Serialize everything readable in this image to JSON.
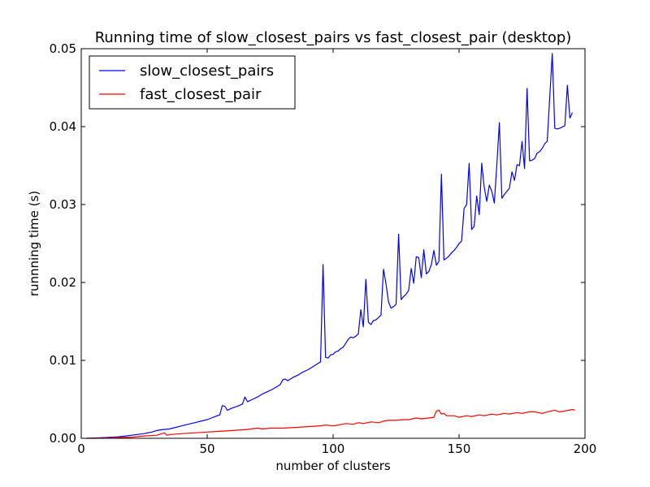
{
  "chart_data": {
    "type": "line",
    "title": "Running time of slow_closest_pairs vs fast_closest_pair (desktop)",
    "xlabel": "number of clusters",
    "ylabel": "runnning time (s)",
    "xlim": [
      0,
      200
    ],
    "ylim": [
      0,
      0.05
    ],
    "xticks": [
      0,
      50,
      100,
      150,
      200
    ],
    "xtick_labels": [
      "0",
      "50",
      "100",
      "150",
      "200"
    ],
    "yticks": [
      0,
      0.01,
      0.02,
      0.03,
      0.04,
      0.05
    ],
    "ytick_labels": [
      "0.00",
      "0.01",
      "0.02",
      "0.03",
      "0.04",
      "0.05"
    ],
    "grid": false,
    "legend_position": "top-left",
    "series": [
      {
        "name": "slow_closest_pairs",
        "color": "#0000ff",
        "points": [
          [
            2,
            0.0
          ],
          [
            5,
            3e-05
          ],
          [
            10,
            0.0001
          ],
          [
            15,
            0.0002
          ],
          [
            20,
            0.0004
          ],
          [
            25,
            0.0006
          ],
          [
            28,
            0.0008
          ],
          [
            30,
            0.001
          ],
          [
            32,
            0.0011
          ],
          [
            35,
            0.0012
          ],
          [
            40,
            0.0016
          ],
          [
            45,
            0.002
          ],
          [
            50,
            0.0024
          ],
          [
            54,
            0.0029
          ],
          [
            55,
            0.003
          ],
          [
            56,
            0.0042
          ],
          [
            57,
            0.0041
          ],
          [
            58,
            0.0036
          ],
          [
            60,
            0.0039
          ],
          [
            62,
            0.0041
          ],
          [
            64,
            0.0044
          ],
          [
            65,
            0.0053
          ],
          [
            66,
            0.0047
          ],
          [
            68,
            0.005
          ],
          [
            70,
            0.0053
          ],
          [
            72,
            0.0057
          ],
          [
            74,
            0.006
          ],
          [
            76,
            0.0063
          ],
          [
            78,
            0.0067
          ],
          [
            79,
            0.0069
          ],
          [
            80,
            0.0075
          ],
          [
            81,
            0.0076
          ],
          [
            82,
            0.0074
          ],
          [
            84,
            0.0078
          ],
          [
            86,
            0.0081
          ],
          [
            88,
            0.0085
          ],
          [
            90,
            0.0088
          ],
          [
            92,
            0.0092
          ],
          [
            94,
            0.0096
          ],
          [
            95,
            0.0098
          ],
          [
            96,
            0.0223
          ],
          [
            97,
            0.0104
          ],
          [
            98,
            0.0103
          ],
          [
            99,
            0.0107
          ],
          [
            100,
            0.0108
          ],
          [
            101,
            0.0111
          ],
          [
            102,
            0.0112
          ],
          [
            103,
            0.0115
          ],
          [
            104,
            0.0117
          ],
          [
            105,
            0.0122
          ],
          [
            106,
            0.0127
          ],
          [
            107,
            0.013
          ],
          [
            108,
            0.0129
          ],
          [
            109,
            0.0131
          ],
          [
            110,
            0.0134
          ],
          [
            111,
            0.0165
          ],
          [
            112,
            0.0143
          ],
          [
            113,
            0.0204
          ],
          [
            114,
            0.0149
          ],
          [
            115,
            0.0146
          ],
          [
            116,
            0.0151
          ],
          [
            117,
            0.0152
          ],
          [
            118,
            0.0155
          ],
          [
            119,
            0.0158
          ],
          [
            120,
            0.0217
          ],
          [
            121,
            0.0198
          ],
          [
            122,
            0.0175
          ],
          [
            123,
            0.0167
          ],
          [
            124,
            0.0169
          ],
          [
            125,
            0.0172
          ],
          [
            126,
            0.0262
          ],
          [
            127,
            0.0178
          ],
          [
            128,
            0.0182
          ],
          [
            129,
            0.0185
          ],
          [
            130,
            0.019
          ],
          [
            131,
            0.0218
          ],
          [
            132,
            0.0199
          ],
          [
            133,
            0.0233
          ],
          [
            134,
            0.0232
          ],
          [
            135,
            0.0206
          ],
          [
            136,
            0.0242
          ],
          [
            137,
            0.0211
          ],
          [
            138,
            0.0214
          ],
          [
            139,
            0.0223
          ],
          [
            140,
            0.0241
          ],
          [
            141,
            0.0222
          ],
          [
            142,
            0.0227
          ],
          [
            143,
            0.0339
          ],
          [
            144,
            0.0229
          ],
          [
            145,
            0.0231
          ],
          [
            146,
            0.0234
          ],
          [
            147,
            0.0238
          ],
          [
            148,
            0.0241
          ],
          [
            149,
            0.0245
          ],
          [
            150,
            0.025
          ],
          [
            151,
            0.0253
          ],
          [
            152,
            0.0295
          ],
          [
            153,
            0.03
          ],
          [
            154,
            0.0353
          ],
          [
            155,
            0.0268
          ],
          [
            156,
            0.0272
          ],
          [
            157,
            0.0311
          ],
          [
            158,
            0.0287
          ],
          [
            159,
            0.0353
          ],
          [
            160,
            0.0322
          ],
          [
            161,
            0.0304
          ],
          [
            162,
            0.0325
          ],
          [
            163,
            0.0317
          ],
          [
            164,
            0.0302
          ],
          [
            165,
            0.0351
          ],
          [
            166,
            0.0405
          ],
          [
            167,
            0.0308
          ],
          [
            168,
            0.0313
          ],
          [
            169,
            0.0317
          ],
          [
            170,
            0.0321
          ],
          [
            171,
            0.0342
          ],
          [
            172,
            0.0331
          ],
          [
            173,
            0.0351
          ],
          [
            174,
            0.035
          ],
          [
            175,
            0.0381
          ],
          [
            176,
            0.0346
          ],
          [
            177,
            0.0449
          ],
          [
            178,
            0.0356
          ],
          [
            179,
            0.0357
          ],
          [
            180,
            0.0359
          ],
          [
            181,
            0.0366
          ],
          [
            182,
            0.0368
          ],
          [
            183,
            0.0372
          ],
          [
            184,
            0.0378
          ],
          [
            185,
            0.0381
          ],
          [
            187,
            0.0494
          ],
          [
            188,
            0.0398
          ],
          [
            189,
            0.0397
          ],
          [
            190,
            0.0398
          ],
          [
            192,
            0.0401
          ],
          [
            193,
            0.0453
          ],
          [
            194,
            0.0411
          ],
          [
            195,
            0.0418
          ]
        ]
      },
      {
        "name": "fast_closest_pair",
        "color": "#ff0000",
        "points": [
          [
            2,
            0.0
          ],
          [
            5,
            0.0
          ],
          [
            10,
            5e-05
          ],
          [
            15,
            0.0001
          ],
          [
            20,
            0.00015
          ],
          [
            25,
            0.0003
          ],
          [
            30,
            0.0004
          ],
          [
            33,
            0.0007
          ],
          [
            34,
            0.0004
          ],
          [
            36,
            0.0005
          ],
          [
            40,
            0.0006
          ],
          [
            45,
            0.0007
          ],
          [
            50,
            0.0008
          ],
          [
            55,
            0.0009
          ],
          [
            60,
            0.001
          ],
          [
            65,
            0.0011
          ],
          [
            70,
            0.0013
          ],
          [
            72,
            0.0012
          ],
          [
            75,
            0.0013
          ],
          [
            80,
            0.0013
          ],
          [
            85,
            0.0014
          ],
          [
            90,
            0.0015
          ],
          [
            95,
            0.0016
          ],
          [
            97,
            0.0017
          ],
          [
            100,
            0.0016
          ],
          [
            102,
            0.0017
          ],
          [
            105,
            0.0019
          ],
          [
            108,
            0.0018
          ],
          [
            110,
            0.002
          ],
          [
            112,
            0.0019
          ],
          [
            115,
            0.0021
          ],
          [
            118,
            0.002
          ],
          [
            120,
            0.0022
          ],
          [
            122,
            0.0023
          ],
          [
            125,
            0.0023
          ],
          [
            128,
            0.0024
          ],
          [
            130,
            0.0024
          ],
          [
            133,
            0.0026
          ],
          [
            135,
            0.0025
          ],
          [
            138,
            0.0026
          ],
          [
            140,
            0.0027
          ],
          [
            141,
            0.0035
          ],
          [
            142,
            0.0036
          ],
          [
            143,
            0.0031
          ],
          [
            144,
            0.0032
          ],
          [
            145,
            0.0029
          ],
          [
            148,
            0.0029
          ],
          [
            150,
            0.0027
          ],
          [
            153,
            0.0029
          ],
          [
            155,
            0.0028
          ],
          [
            158,
            0.003
          ],
          [
            160,
            0.0029
          ],
          [
            163,
            0.0031
          ],
          [
            165,
            0.003
          ],
          [
            168,
            0.0032
          ],
          [
            170,
            0.0031
          ],
          [
            173,
            0.0033
          ],
          [
            175,
            0.0032
          ],
          [
            178,
            0.0034
          ],
          [
            180,
            0.0034
          ],
          [
            183,
            0.0032
          ],
          [
            185,
            0.0034
          ],
          [
            188,
            0.0036
          ],
          [
            190,
            0.0034
          ],
          [
            192,
            0.0035
          ],
          [
            195,
            0.0037
          ],
          [
            196,
            0.0036
          ]
        ]
      }
    ]
  }
}
